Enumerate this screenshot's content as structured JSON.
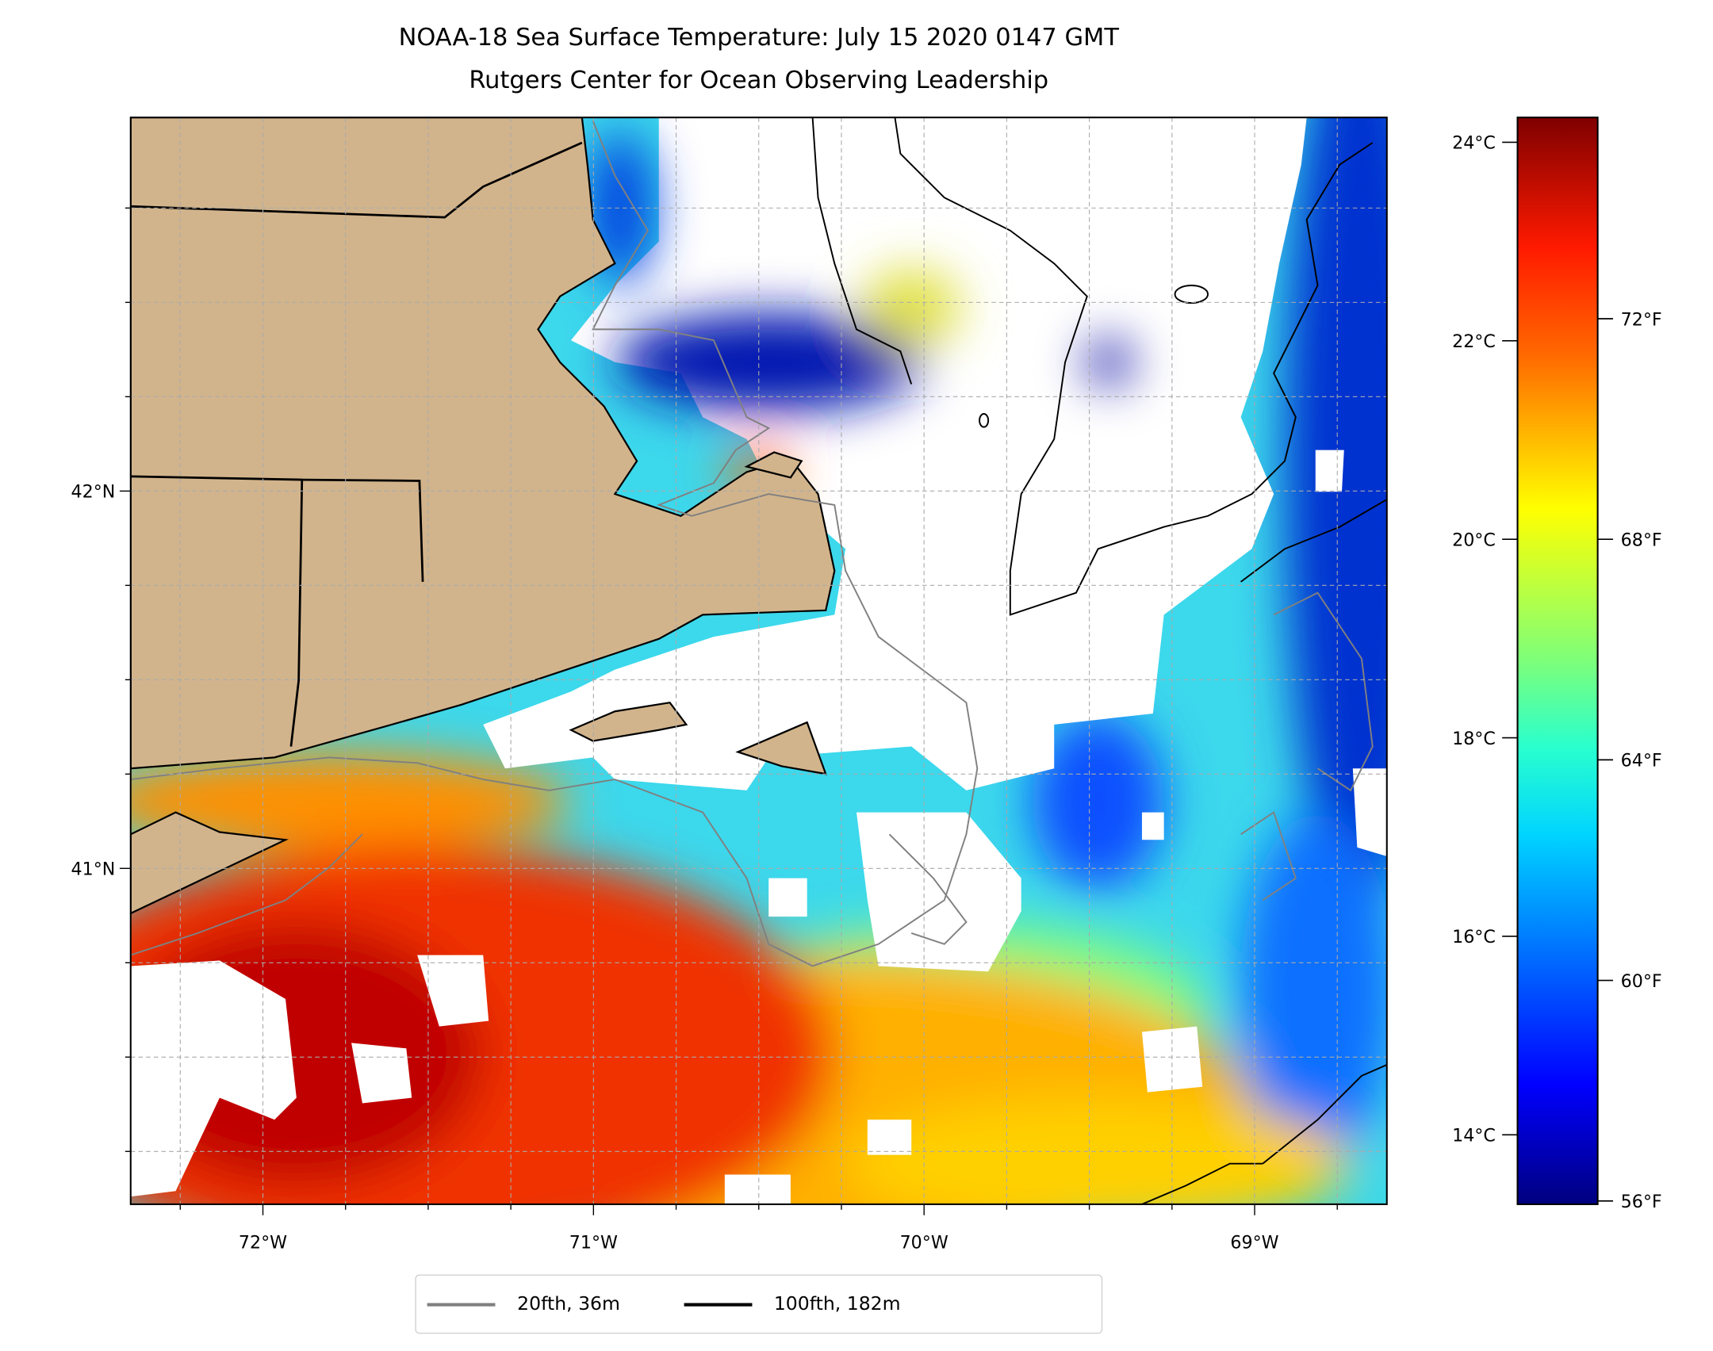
{
  "title": {
    "line1": "NOAA-18 Sea Surface Temperature: July 15 2020 0147 GMT",
    "line2": "Rutgers Center for Ocean Observing Leadership"
  },
  "legend": {
    "items": [
      {
        "label": "20fth, 36m",
        "color": "#808080"
      },
      {
        "label": "100fth, 182m",
        "color": "#000000"
      }
    ]
  },
  "colors": {
    "land": "#d2b48c",
    "no_data": "#ffffff"
  },
  "chart_data": {
    "type": "heatmap",
    "title": "NOAA-18 Sea Surface Temperature: July 15 2020 0147 GMT",
    "subtitle": "Rutgers Center for Ocean Observing Leadership",
    "variable": "Sea Surface Temperature",
    "xlim": [
      -72.4,
      -68.6
    ],
    "ylim": [
      40.11,
      42.99
    ],
    "x_ticks": [
      {
        "value": -72,
        "label": "72°W"
      },
      {
        "value": -71,
        "label": "71°W"
      },
      {
        "value": -70,
        "label": "70°W"
      },
      {
        "value": -69,
        "label": "69°W"
      }
    ],
    "y_ticks": [
      {
        "value": 42,
        "label": "42°N"
      },
      {
        "value": 41,
        "label": "41°N"
      }
    ],
    "grid": true,
    "grid_step_deg": 0.25,
    "colormap": "jet",
    "colorbar": {
      "range_c": [
        13.3,
        24.25
      ],
      "ticks_c": [
        {
          "value": 24,
          "label": "24°C"
        },
        {
          "value": 22,
          "label": "22°C"
        },
        {
          "value": 20,
          "label": "20°C"
        },
        {
          "value": 18,
          "label": "18°C"
        },
        {
          "value": 16,
          "label": "16°C"
        },
        {
          "value": 14,
          "label": "14°C"
        }
      ],
      "ticks_f": [
        {
          "value": 72,
          "label": "72°F"
        },
        {
          "value": 68,
          "label": "68°F"
        },
        {
          "value": 64,
          "label": "64°F"
        },
        {
          "value": 60,
          "label": "60°F"
        },
        {
          "value": 56,
          "label": "56°F"
        }
      ]
    },
    "legend_placement": "bottom-center"
  }
}
